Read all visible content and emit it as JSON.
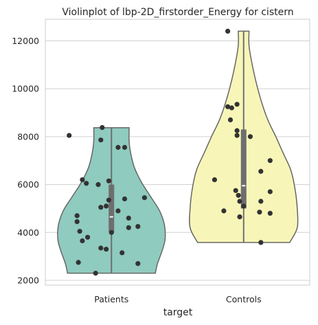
{
  "chart_data": {
    "type": "violin",
    "title": "Violinplot of lbp-2D_firstorder_Energy for cistern",
    "xlabel": "target",
    "ylabel": "",
    "categories": [
      "Patients",
      "Controls"
    ],
    "yticks": [
      2000,
      4000,
      6000,
      8000,
      10000,
      12000
    ],
    "ylim": [
      1800,
      12900
    ],
    "grid": "horizontal",
    "colors": {
      "Patients": "#8fcbbf",
      "Controls": "#f7f6b8",
      "outline": "#666666",
      "points": "#333333",
      "box": "#6e6e6e",
      "grid": "#d0d0d0"
    },
    "violins": [
      {
        "category": "Patients",
        "min": 2300,
        "q1": 4000,
        "median": 4650,
        "q3": 6000,
        "max": 8370,
        "density": [
          [
            2300,
            0.82
          ],
          [
            2700,
            0.86
          ],
          [
            3200,
            0.94
          ],
          [
            3700,
            1.0
          ],
          [
            4300,
            0.99
          ],
          [
            4900,
            0.9
          ],
          [
            5500,
            0.73
          ],
          [
            6100,
            0.56
          ],
          [
            6700,
            0.43
          ],
          [
            7300,
            0.36
          ],
          [
            7800,
            0.33
          ],
          [
            8370,
            0.33
          ]
        ]
      },
      {
        "category": "Controls",
        "min": 3580,
        "q1": 5000,
        "median": 5950,
        "q3": 8300,
        "max": 12400,
        "density": [
          [
            3580,
            0.86
          ],
          [
            4200,
            1.0
          ],
          [
            5000,
            1.0
          ],
          [
            5800,
            0.96
          ],
          [
            6600,
            0.88
          ],
          [
            7300,
            0.74
          ],
          [
            8000,
            0.6
          ],
          [
            8700,
            0.45
          ],
          [
            9400,
            0.34
          ],
          [
            10200,
            0.24
          ],
          [
            11000,
            0.16
          ],
          [
            11800,
            0.1
          ],
          [
            12400,
            0.1
          ]
        ]
      }
    ],
    "points": [
      {
        "category": "Patients",
        "values": [
          8380,
          8050,
          7860,
          7550,
          7550,
          6200,
          6150,
          6050,
          6000,
          5450,
          5400,
          5350,
          5100,
          5050,
          4900,
          4700,
          4600,
          4450,
          4250,
          4200,
          4050,
          4000,
          3800,
          3650,
          3350,
          3300,
          3150,
          2750,
          2700,
          2300
        ],
        "jitter": [
          -0.07,
          -0.32,
          -0.08,
          0.1,
          0.05,
          -0.22,
          -0.02,
          -0.19,
          -0.1,
          0.25,
          0.1,
          -0.02,
          -0.04,
          -0.08,
          0.05,
          -0.26,
          0.13,
          -0.26,
          0.2,
          0.13,
          -0.24,
          0.0,
          -0.18,
          -0.22,
          -0.08,
          -0.04,
          0.08,
          -0.25,
          0.2,
          -0.12
        ]
      },
      {
        "category": "Controls",
        "values": [
          12400,
          9350,
          9250,
          9200,
          8700,
          8250,
          8050,
          8000,
          7000,
          6550,
          6200,
          5750,
          5700,
          5550,
          5300,
          5300,
          5100,
          4900,
          4850,
          4800,
          4650,
          3580
        ],
        "jitter": [
          -0.12,
          -0.05,
          -0.12,
          -0.09,
          -0.1,
          -0.05,
          -0.05,
          0.05,
          0.2,
          0.13,
          -0.22,
          -0.06,
          0.2,
          -0.04,
          0.13,
          -0.03,
          0.0,
          -0.15,
          0.12,
          0.2,
          -0.03,
          0.13
        ]
      }
    ]
  }
}
